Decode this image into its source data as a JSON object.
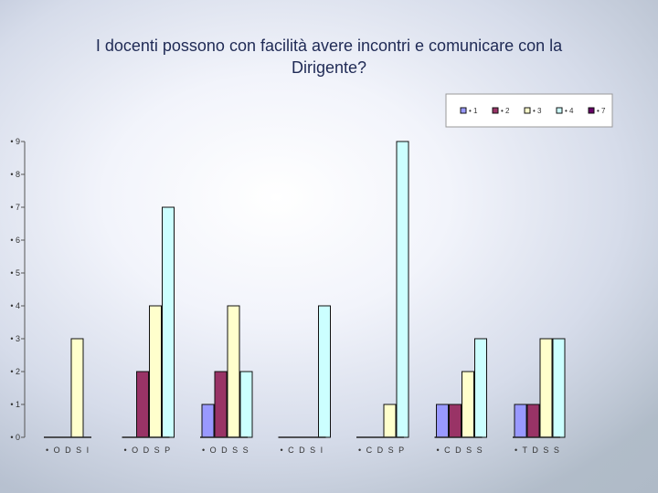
{
  "chart_data": {
    "type": "bar",
    "title": "I docenti possono con facilità avere incontri e comunicare con la\nDirigente?",
    "categories": [
      "• O D S I",
      "• O D S P",
      "• O D S S",
      "• C D S I",
      "• C D S P",
      "• C D S S",
      "• T D S S"
    ],
    "series": [
      {
        "name": "• 1",
        "color": "#9999ff",
        "values": [
          0,
          0,
          1,
          0,
          0,
          1,
          1
        ]
      },
      {
        "name": "• 2",
        "color": "#993366",
        "values": [
          0,
          2,
          2,
          0,
          0,
          1,
          1
        ]
      },
      {
        "name": "• 3",
        "color": "#ffffcc",
        "values": [
          3,
          4,
          4,
          0,
          1,
          2,
          3
        ]
      },
      {
        "name": "• 4",
        "color": "#ccffff",
        "values": [
          0,
          7,
          2,
          4,
          9,
          3,
          3
        ]
      },
      {
        "name": "• 7",
        "color": "#660066",
        "values": [
          0,
          0,
          0,
          0,
          0,
          0,
          0
        ]
      }
    ],
    "yticks": [
      "• 0",
      "• 1",
      "• 2",
      "• 3",
      "• 4",
      "• 5",
      "• 6",
      "• 7",
      "• 8",
      "• 9"
    ],
    "ylim": [
      0,
      9
    ],
    "legend_position": "top-right",
    "grid": false
  }
}
